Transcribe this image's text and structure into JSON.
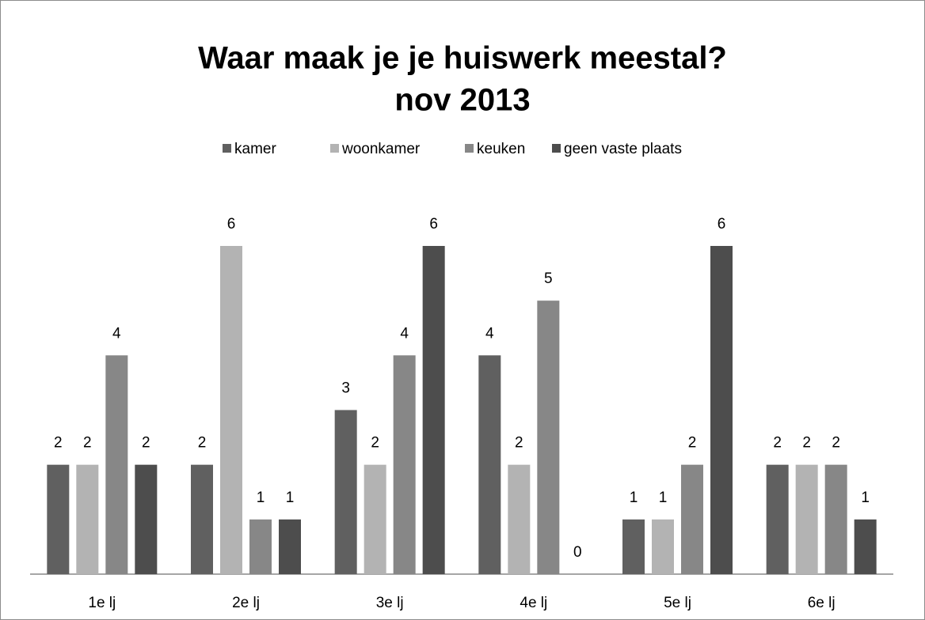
{
  "chart_data": {
    "type": "bar",
    "title": "Waar maak je je huiswerk meestal?",
    "subtitle": "nov 2013",
    "categories": [
      "1e lj",
      "2e lj",
      "3e lj",
      "4e lj",
      "5e lj",
      "6e lj"
    ],
    "series": [
      {
        "name": "kamer",
        "color": "#606060",
        "values": [
          2,
          2,
          3,
          4,
          1,
          2
        ]
      },
      {
        "name": "woonkamer",
        "color": "#b3b3b3",
        "values": [
          2,
          6,
          2,
          2,
          1,
          2
        ]
      },
      {
        "name": "keuken",
        "color": "#878787",
        "values": [
          4,
          1,
          4,
          5,
          2,
          2
        ]
      },
      {
        "name": "geen vaste plaats",
        "color": "#4d4d4d",
        "values": [
          2,
          1,
          6,
          0,
          6,
          1
        ]
      }
    ],
    "ylim": [
      0,
      6
    ],
    "legend": "top"
  }
}
